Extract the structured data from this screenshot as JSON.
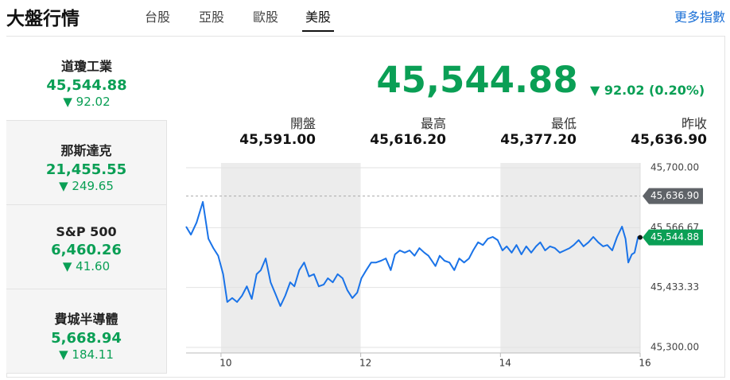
{
  "header": {
    "title": "大盤行情",
    "more": "更多指數"
  },
  "tabs": [
    "台股",
    "亞股",
    "歐股",
    "美股"
  ],
  "indices": [
    {
      "name": "道瓊工業",
      "value": "45,544.88",
      "change": "92.02"
    },
    {
      "name": "那斯達克",
      "value": "21,455.55",
      "change": "249.65"
    },
    {
      "name": "S&P 500",
      "value": "6,460.26",
      "change": "41.60"
    },
    {
      "name": "費城半導體",
      "value": "5,668.94",
      "change": "184.11"
    }
  ],
  "quote": {
    "price": "45,544.88",
    "change": "92.02 (0.20%)"
  },
  "stats": [
    {
      "label": "開盤",
      "value": "45,591.00"
    },
    {
      "label": "最高",
      "value": "45,616.20"
    },
    {
      "label": "最低",
      "value": "45,377.20"
    },
    {
      "label": "昨收",
      "value": "45,636.90"
    }
  ],
  "chart_data": {
    "type": "line",
    "color": "#1a73e8",
    "x": [
      9.5,
      9.57,
      9.65,
      9.74,
      9.82,
      9.89,
      9.96,
      10.03,
      10.09,
      10.16,
      10.23,
      10.3,
      10.37,
      10.44,
      10.51,
      10.57,
      10.64,
      10.71,
      10.78,
      10.85,
      10.92,
      10.99,
      11.05,
      11.12,
      11.19,
      11.26,
      11.33,
      11.4,
      11.47,
      11.53,
      11.6,
      11.67,
      11.74,
      11.81,
      11.88,
      11.95,
      12.01,
      12.08,
      12.15,
      12.22,
      12.29,
      12.36,
      12.43,
      12.49,
      12.56,
      12.63,
      12.7,
      12.77,
      12.84,
      12.91,
      12.97,
      13.07,
      13.13,
      13.2,
      13.27,
      13.34,
      13.41,
      13.48,
      13.55,
      13.61,
      13.68,
      13.75,
      13.82,
      13.89,
      13.96,
      14.03,
      14.09,
      14.16,
      14.23,
      14.3,
      14.37,
      14.44,
      14.51,
      14.57,
      14.64,
      14.71,
      14.78,
      14.85,
      14.92,
      14.99,
      15.05,
      15.12,
      15.19,
      15.26,
      15.33,
      15.4,
      15.47,
      15.53,
      15.6,
      15.67,
      15.74,
      15.79,
      15.83,
      15.88,
      15.92,
      15.97,
      16
    ],
    "values": [
      45569,
      45551,
      45578,
      45624,
      45542,
      45521,
      45504,
      45463,
      45401,
      45410,
      45401,
      45415,
      45436,
      45408,
      45463,
      45472,
      45498,
      45445,
      45419,
      45392,
      45415,
      45445,
      45436,
      45472,
      45489,
      45458,
      45463,
      45436,
      45440,
      45454,
      45445,
      45463,
      45454,
      45427,
      45410,
      45422,
      45454,
      45472,
      45489,
      45489,
      45493,
      45498,
      45472,
      45507,
      45516,
      45511,
      45516,
      45504,
      45521,
      45511,
      45504,
      45481,
      45504,
      45493,
      45489,
      45472,
      45498,
      45489,
      45498,
      45516,
      45534,
      45528,
      45542,
      45546,
      45539,
      45516,
      45525,
      45511,
      45528,
      45507,
      45525,
      45511,
      45525,
      45534,
      45516,
      45525,
      45521,
      45511,
      45516,
      45521,
      45528,
      45539,
      45525,
      45534,
      45546,
      45534,
      45525,
      45528,
      45516,
      45546,
      45569,
      45542,
      45489,
      45507,
      45511,
      45546,
      45544.88
    ],
    "xlim": [
      9.5,
      16
    ],
    "xticks": [
      10,
      12,
      14,
      16
    ],
    "ylim": [
      45300,
      45700
    ],
    "yticks": [
      {
        "value": 45300,
        "label": "45,300.00"
      },
      {
        "value": 45433.33,
        "label": "45,433.33"
      },
      {
        "value": 45566.67,
        "label": "45,566.67"
      },
      {
        "value": 45700,
        "label": "45,700.00"
      }
    ],
    "reference": {
      "value": 45636.9,
      "label": "45,636.90"
    },
    "last": {
      "value": 45544.88,
      "label": "45,544.88"
    },
    "grid": true
  }
}
